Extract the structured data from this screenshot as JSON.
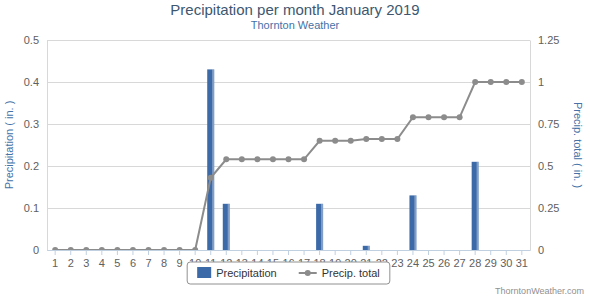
{
  "chart_data": {
    "type": "bar",
    "title": "Precipitation per month January 2019",
    "subtitle": "Thornton Weather",
    "ylabel": "Precipitation ( in. )",
    "y2label": "Precip. total ( in. )",
    "annotations": [
      "ThorntonWeather.com"
    ],
    "categories": [
      "1",
      "2",
      "3",
      "4",
      "5",
      "6",
      "7",
      "8",
      "9",
      "10",
      "11",
      "12",
      "13",
      "14",
      "15",
      "16",
      "17",
      "18",
      "19",
      "20",
      "21",
      "22",
      "23",
      "24",
      "25",
      "26",
      "27",
      "28",
      "29",
      "30",
      "31"
    ],
    "series": [
      {
        "name": "Precipitation",
        "type": "bar",
        "color": "#3c6aa8",
        "values": [
          0,
          0,
          0,
          0,
          0,
          0,
          0,
          0,
          0,
          0,
          0.43,
          0.11,
          0,
          0,
          0,
          0,
          0,
          0.11,
          0,
          0,
          0.01,
          0,
          0,
          0.13,
          0,
          0,
          0,
          0.21,
          0,
          0,
          0
        ]
      },
      {
        "name": "Precip. total",
        "type": "line",
        "color": "#8c8c8c",
        "marker": "circle",
        "axis": "y2",
        "values": [
          0,
          0,
          0,
          0,
          0,
          0,
          0,
          0,
          0,
          0,
          0.43,
          0.54,
          0.54,
          0.54,
          0.54,
          0.54,
          0.54,
          0.65,
          0.65,
          0.65,
          0.66,
          0.66,
          0.66,
          0.79,
          0.79,
          0.79,
          0.79,
          1.0,
          1.0,
          1.0,
          1.0
        ]
      }
    ],
    "ylim": [
      0,
      0.5
    ],
    "yticks": [
      0,
      0.1,
      0.2,
      0.3,
      0.4,
      0.5
    ],
    "y2lim": [
      0,
      1.25
    ],
    "y2ticks": [
      0,
      0.25,
      0.5,
      0.75,
      1,
      1.25
    ],
    "grid": true,
    "legend": "bottom"
  }
}
